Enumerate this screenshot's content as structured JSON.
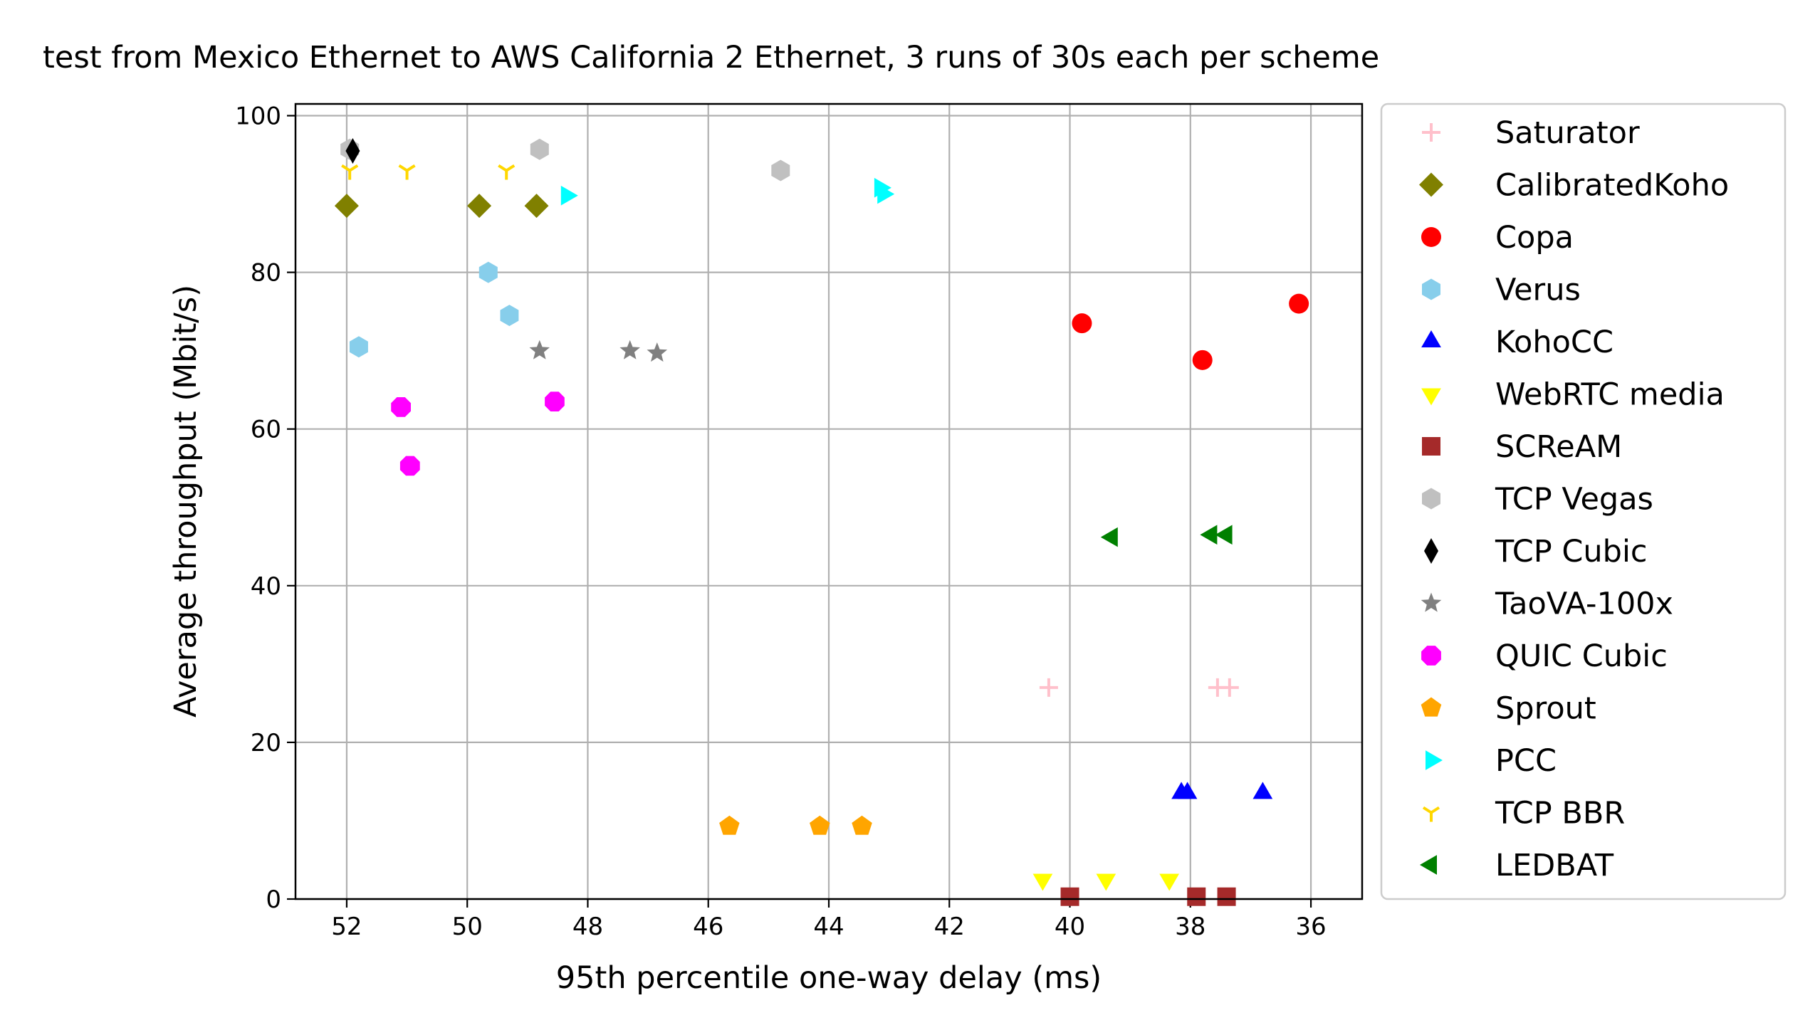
{
  "chart_data": {
    "type": "scatter",
    "title": "test from Mexico Ethernet to AWS California 2 Ethernet, 3 runs of 30s each per scheme",
    "xlabel": "95th percentile one-way delay (ms)",
    "ylabel": "Average throughput (Mbit/s)",
    "xlim": [
      52.85,
      35.15
    ],
    "ylim": [
      0,
      101.5
    ],
    "x_inverted": true,
    "xticks": [
      52,
      50,
      48,
      46,
      44,
      42,
      40,
      38,
      36
    ],
    "yticks": [
      0,
      20,
      40,
      60,
      80,
      100
    ],
    "grid": true,
    "legend_position": "outside-right",
    "series": [
      {
        "name": "Saturator",
        "marker": "plus",
        "color": "#ffc0cb",
        "points": [
          [
            40.35,
            27.0
          ],
          [
            37.55,
            27.0
          ],
          [
            37.35,
            27.0
          ]
        ]
      },
      {
        "name": "CalibratedKoho",
        "marker": "diamond",
        "color": "#808000",
        "points": [
          [
            52.0,
            88.5
          ],
          [
            49.8,
            88.5
          ],
          [
            48.85,
            88.5
          ]
        ]
      },
      {
        "name": "Copa",
        "marker": "circle",
        "color": "#ff0000",
        "points": [
          [
            39.8,
            73.5
          ],
          [
            37.8,
            68.8
          ],
          [
            36.2,
            76.0
          ]
        ]
      },
      {
        "name": "Verus",
        "marker": "hexagon",
        "color": "#87ceeb",
        "points": [
          [
            51.8,
            70.5
          ],
          [
            49.65,
            80.0
          ],
          [
            49.3,
            74.5
          ]
        ]
      },
      {
        "name": "KohoCC",
        "marker": "triangle-up",
        "color": "#0000ff",
        "points": [
          [
            38.15,
            13.5
          ],
          [
            38.05,
            13.5
          ],
          [
            36.8,
            13.5
          ]
        ]
      },
      {
        "name": "WebRTC media",
        "marker": "triangle-down",
        "color": "#ffff00",
        "points": [
          [
            40.45,
            2.5
          ],
          [
            39.4,
            2.5
          ],
          [
            38.35,
            2.5
          ]
        ]
      },
      {
        "name": "SCReAM",
        "marker": "square",
        "color": "#a52a2a",
        "points": [
          [
            40.0,
            0.3
          ],
          [
            37.9,
            0.3
          ],
          [
            37.4,
            0.3
          ]
        ]
      },
      {
        "name": "TCP Vegas",
        "marker": "hexagon",
        "color": "#c0c0c0",
        "points": [
          [
            51.95,
            95.7
          ],
          [
            48.8,
            95.7
          ],
          [
            44.8,
            93.0
          ]
        ]
      },
      {
        "name": "TCP Cubic",
        "marker": "thin-diamond",
        "color": "#000000",
        "points": [
          [
            51.9,
            95.5
          ]
        ]
      },
      {
        "name": "TaoVA-100x",
        "marker": "star",
        "color": "#808080",
        "points": [
          [
            48.8,
            70.0
          ],
          [
            47.3,
            70.0
          ],
          [
            46.85,
            69.7
          ]
        ]
      },
      {
        "name": "QUIC Cubic",
        "marker": "octagon",
        "color": "#ff00ff",
        "points": [
          [
            51.1,
            62.8
          ],
          [
            50.95,
            55.3
          ],
          [
            48.55,
            63.5
          ]
        ]
      },
      {
        "name": "Sprout",
        "marker": "pentagon",
        "color": "#ffa500",
        "points": [
          [
            45.65,
            9.3
          ],
          [
            44.15,
            9.3
          ],
          [
            43.45,
            9.3
          ]
        ]
      },
      {
        "name": "PCC",
        "marker": "triangle-right",
        "color": "#00ffff",
        "points": [
          [
            48.35,
            89.8
          ],
          [
            43.15,
            90.8
          ],
          [
            43.1,
            90.0
          ]
        ]
      },
      {
        "name": "TCP BBR",
        "marker": "tri-down",
        "color": "#ffd700",
        "points": [
          [
            51.95,
            93.0
          ],
          [
            51.0,
            93.0
          ],
          [
            49.35,
            93.0
          ]
        ]
      },
      {
        "name": "LEDBAT",
        "marker": "triangle-left",
        "color": "#008000",
        "points": [
          [
            39.3,
            46.2
          ],
          [
            37.65,
            46.5
          ],
          [
            37.4,
            46.5
          ]
        ]
      }
    ]
  }
}
